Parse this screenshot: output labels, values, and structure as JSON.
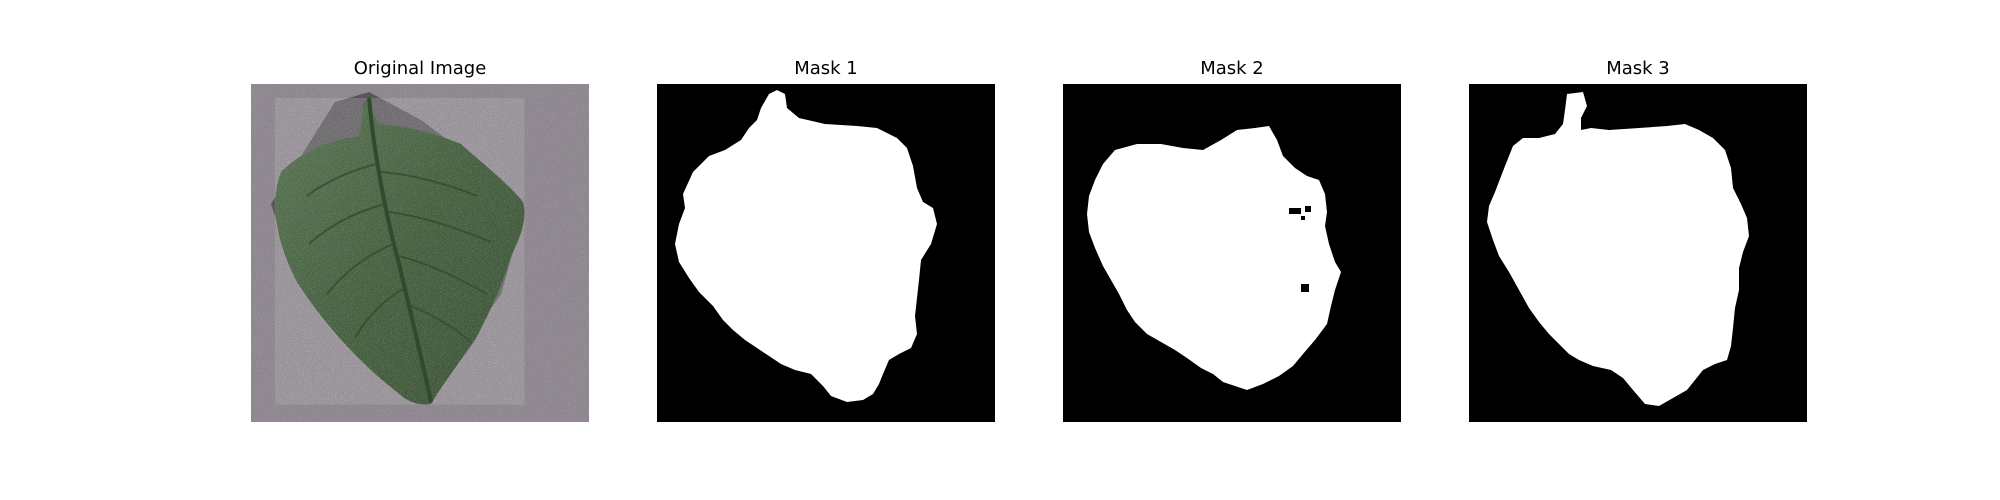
{
  "figure": {
    "panels": [
      {
        "title": "Original Image"
      },
      {
        "title": "Mask 1"
      },
      {
        "title": "Mask 2"
      },
      {
        "title": "Mask 3"
      }
    ]
  },
  "colors": {
    "mask_foreground": "#ffffff",
    "mask_background": "#000000",
    "background_surface": "#8f8790",
    "leaf": "#4d6a4a"
  }
}
